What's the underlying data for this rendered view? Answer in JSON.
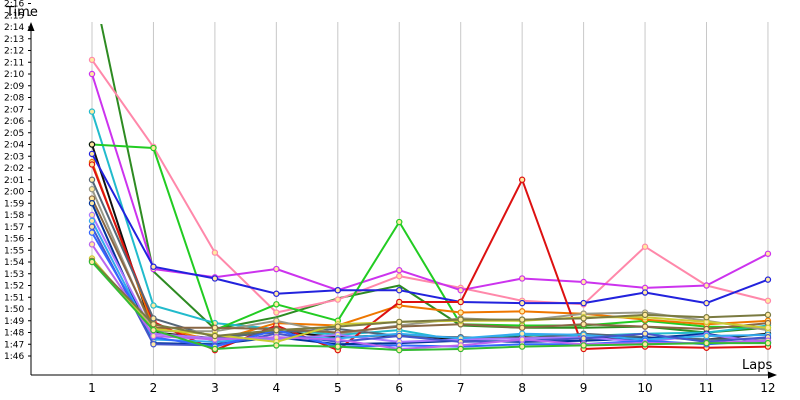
{
  "chart_data": {
    "type": "line",
    "xlabel": "Laps",
    "ylabel": "Time",
    "x": [
      1,
      2,
      3,
      4,
      5,
      6,
      7,
      8,
      9,
      10,
      11,
      12
    ],
    "ylim": [
      105,
      138
    ],
    "y_tick_labels": [
      "1:46",
      "1:47",
      "1:48",
      "1:49",
      "1:50",
      "1:51",
      "1:52",
      "1:53",
      "1:54",
      "1:55",
      "1:56",
      "1:57",
      "1:58",
      "1:59",
      "2:00",
      "2:01",
      "2:02",
      "2:03",
      "2:04",
      "2:05",
      "2:06",
      "2:07",
      "2:08",
      "2:09",
      "2:10",
      "2:11",
      "2:12",
      "2:13",
      "2:14",
      "2:15",
      "2:16"
    ],
    "x_tick_labels": [
      "1",
      "2",
      "3",
      "4",
      "5",
      "6",
      "7",
      "8",
      "9",
      "10",
      "11",
      "12"
    ],
    "grid": "vertical",
    "series": [
      {
        "color": "#2e8b22",
        "markers": false,
        "values": [
          138,
          113.2,
          108.3,
          109.3,
          110.9,
          112.0,
          108.6,
          108.4,
          108.4,
          108.5,
          108.0,
          108.4
        ]
      },
      {
        "color": "#ff88aa",
        "values": [
          131.2,
          123.8,
          114.8,
          109.7,
          110.8,
          112.8,
          111.8,
          110.7,
          110.4,
          115.3,
          112.0,
          110.7
        ]
      },
      {
        "color": "#cc33ee",
        "values": [
          130.0,
          113.4,
          112.7,
          113.4,
          111.6,
          113.3,
          111.6,
          112.6,
          112.3,
          111.8,
          112.0,
          114.7
        ]
      },
      {
        "color": "#22bbcc",
        "values": [
          126.8,
          110.3,
          108.8,
          108.3,
          107.8,
          108.2,
          107.3,
          107.8,
          107.7,
          107.9,
          108.0,
          108.6
        ]
      },
      {
        "color": "#22cc22",
        "values": [
          124.0,
          123.7,
          108.2,
          110.4,
          109.0,
          117.4,
          108.7,
          108.6,
          108.6,
          109.0,
          108.5,
          108.4
        ]
      },
      {
        "color": "#111111",
        "values": [
          124.0,
          108.0,
          107.5,
          108.1,
          107.6,
          107.8,
          107.4,
          107.6,
          107.5,
          107.6,
          107.4,
          107.9
        ]
      },
      {
        "color": "#2222dd",
        "values": [
          123.2,
          113.6,
          112.6,
          111.3,
          111.6,
          111.6,
          110.6,
          110.5,
          110.5,
          111.4,
          110.5,
          112.5
        ]
      },
      {
        "color": "#ee7700",
        "values": [
          122.5,
          108.5,
          107.3,
          108.8,
          108.6,
          110.3,
          109.7,
          109.8,
          109.6,
          109.1,
          108.7,
          109.0
        ]
      },
      {
        "color": "#dd1111",
        "values": [
          122.3,
          108.9,
          106.5,
          108.6,
          106.5,
          110.6,
          110.6,
          121.0,
          106.6,
          106.8,
          106.7,
          106.8
        ]
      },
      {
        "color": "#556677",
        "values": [
          121.0,
          109.2,
          107.6,
          108.0,
          108.3,
          107.7,
          107.6,
          107.5,
          107.9,
          107.6,
          107.4,
          107.5
        ]
      },
      {
        "color": "#999988",
        "values": [
          120.2,
          108.1,
          108.1,
          109.0,
          107.9,
          108.6,
          109.2,
          109.0,
          109.6,
          109.7,
          109.0,
          108.2
        ]
      },
      {
        "color": "#886644",
        "values": [
          119.4,
          108.4,
          108.4,
          108.3,
          108.0,
          108.5,
          108.7,
          108.4,
          108.7,
          108.5,
          108.3,
          108.8
        ]
      },
      {
        "color": "#003399",
        "values": [
          119.0,
          107.1,
          107.0,
          107.6,
          107.0,
          107.1,
          107.3,
          107.2,
          107.3,
          107.5,
          107.9,
          107.1
        ]
      },
      {
        "color": "#aa77ff",
        "values": [
          118.0,
          107.9,
          107.5,
          107.4,
          107.8,
          107.2,
          107.4,
          107.5,
          107.6,
          107.2,
          107.8,
          107.2
        ]
      },
      {
        "color": "#33aaee",
        "values": [
          117.5,
          107.4,
          107.2,
          107.6,
          107.5,
          107.9,
          107.5,
          107.9,
          107.8,
          107.4,
          107.7,
          107.8
        ]
      },
      {
        "color": "#4455cc",
        "values": [
          117.0,
          107.0,
          106.9,
          107.9,
          107.2,
          107.7,
          107.2,
          107.3,
          107.5,
          107.9,
          107.2,
          107.6
        ]
      },
      {
        "color": "#3366ff",
        "values": [
          116.5,
          107.6,
          106.8,
          108.2,
          106.8,
          106.9,
          106.8,
          107.0,
          107.0,
          107.3,
          107.0,
          107.3
        ]
      },
      {
        "color": "#bb66ee",
        "values": [
          115.5,
          107.7,
          107.4,
          107.6,
          107.4,
          106.6,
          106.9,
          107.4,
          107.0,
          107.1,
          107.1,
          107.3
        ]
      },
      {
        "color": "#cccc33",
        "values": [
          114.3,
          108.3,
          107.8,
          107.2,
          108.7,
          108.9,
          109.0,
          109.0,
          109.3,
          109.3,
          108.9,
          108.4
        ]
      },
      {
        "color": "#7a7a40",
        "values": [
          114.1,
          108.7,
          107.7,
          108.2,
          108.5,
          108.9,
          109.1,
          109.1,
          109.2,
          109.5,
          109.3,
          109.5
        ]
      },
      {
        "color": "#33bb33",
        "values": [
          114.0,
          108.2,
          106.6,
          106.9,
          106.8,
          106.5,
          106.6,
          106.8,
          106.9,
          107.0,
          107.1,
          107.1
        ]
      }
    ]
  }
}
